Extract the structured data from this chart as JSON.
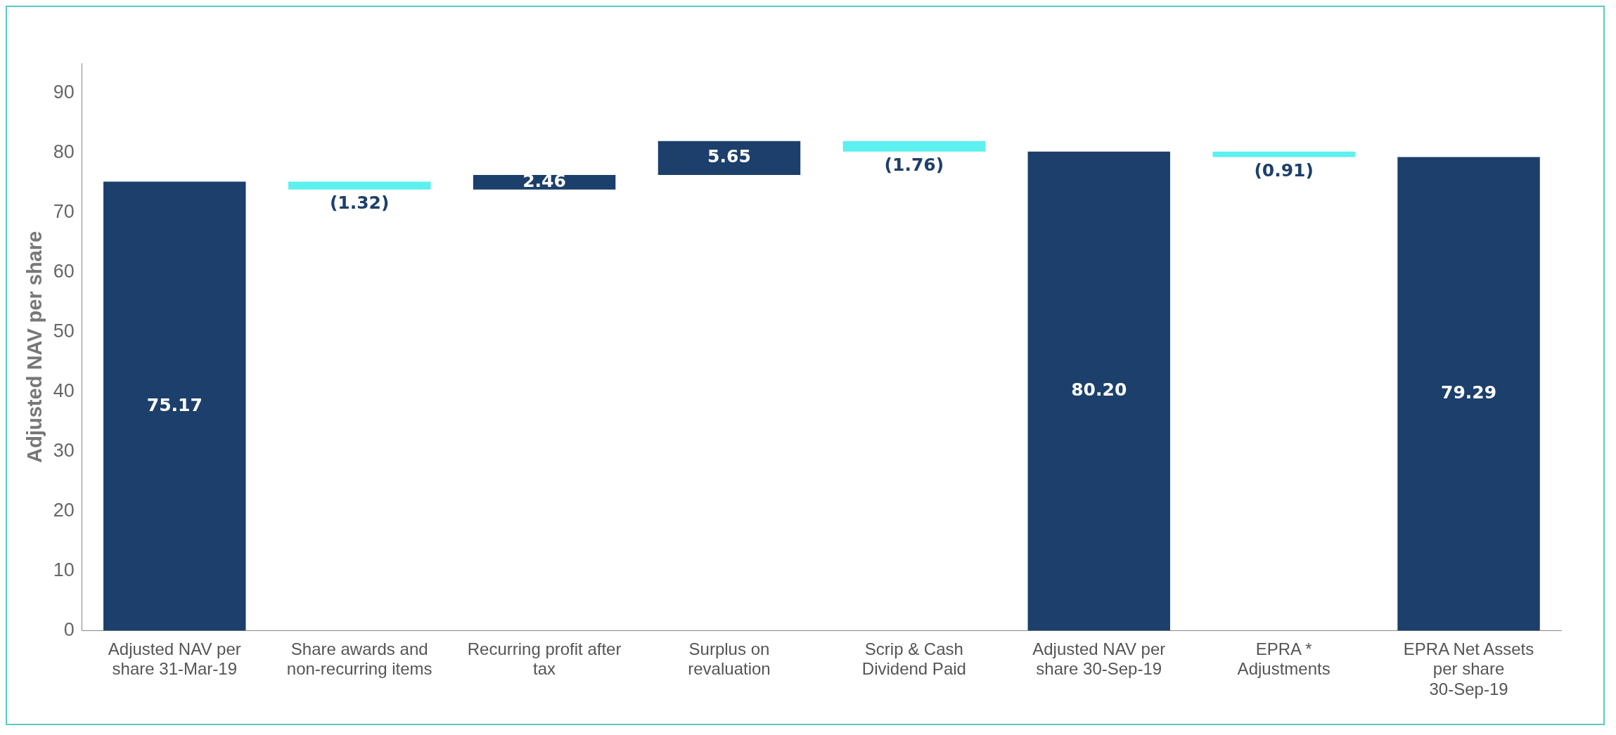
{
  "chart_data": {
    "type": "bar",
    "ylabel": "Adjusted NAV per share",
    "categories": [
      "Adjusted NAV per share 31-Mar-19",
      "Share awards and non-recurring items",
      "Recurring profit after tax",
      "Surplus on revaluation",
      "Scrip & Cash Dividend Paid",
      "Adjusted NAV per share 30-Sep-19",
      "EPRA * Adjustments",
      "EPRA Net Assets per share 30-Sep-19"
    ],
    "values": [
      75.17,
      -1.32,
      2.46,
      5.65,
      -1.76,
      80.2,
      -0.91,
      79.29
    ],
    "base": [
      0,
      75.17,
      73.85,
      76.31,
      81.96,
      0,
      80.2,
      0
    ],
    "colors": [
      "#1c3f6b",
      "#5cf0ee",
      "#1c3f6b",
      "#1c3f6b",
      "#5cf0ee",
      "#1c3f6b",
      "#5cf0ee",
      "#1c3f6b"
    ],
    "value_labels": [
      "75.17",
      "(1.32)",
      "2.46",
      "5.65",
      "(1.76)",
      "80.20",
      "(0.91)",
      "79.29"
    ],
    "ylim": [
      0,
      95
    ],
    "yticks": [
      0,
      10,
      20,
      30,
      40,
      50,
      60,
      70,
      80,
      90
    ],
    "grid": false,
    "legend": false
  }
}
